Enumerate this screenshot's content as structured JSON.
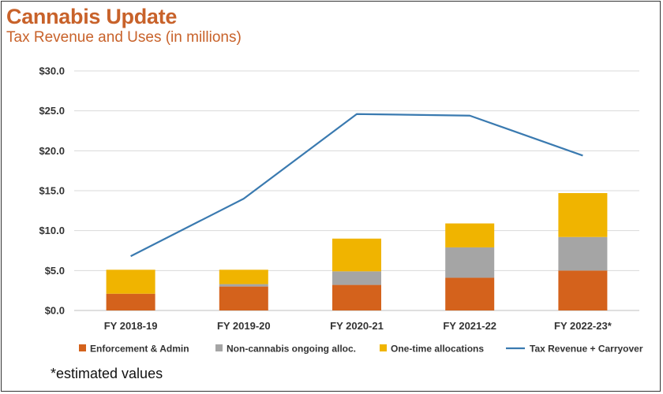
{
  "header": {
    "title": "Cannabis Update",
    "subtitle": "Tax Revenue and Uses (in millions)"
  },
  "footnote": "*estimated values",
  "colors": {
    "title": "#c8622a",
    "enforcement": "#d4621c",
    "noncannabis": "#a5a5a5",
    "onetime": "#f0b400",
    "line": "#3a7ab0",
    "grid": "#d9d9d9"
  },
  "chart_data": {
    "type": "bar",
    "stacked": true,
    "categories": [
      "FY 2018-19",
      "FY 2019-20",
      "FY 2020-21",
      "FY 2021-22",
      "FY 2022-23*"
    ],
    "series": [
      {
        "name": "Enforcement & Admin",
        "kind": "bar",
        "color": "#d4621c",
        "values": [
          2.1,
          3.0,
          3.2,
          4.1,
          5.0
        ]
      },
      {
        "name": "Non-cannabis ongoing alloc.",
        "kind": "bar",
        "color": "#a5a5a5",
        "values": [
          0.0,
          0.3,
          1.7,
          3.8,
          4.2
        ]
      },
      {
        "name": "One-time allocations",
        "kind": "bar",
        "color": "#f0b400",
        "values": [
          3.0,
          1.8,
          4.1,
          3.0,
          5.5
        ]
      },
      {
        "name": "Tax Revenue + Carryover",
        "kind": "line",
        "color": "#3a7ab0",
        "values": [
          6.8,
          14.0,
          24.6,
          24.4,
          19.4
        ]
      }
    ],
    "ylim": [
      0,
      30
    ],
    "yticks": [
      "$0.0",
      "$5.0",
      "$10.0",
      "$15.0",
      "$20.0",
      "$25.0",
      "$30.0"
    ],
    "grid": true,
    "legend_position": "bottom"
  }
}
